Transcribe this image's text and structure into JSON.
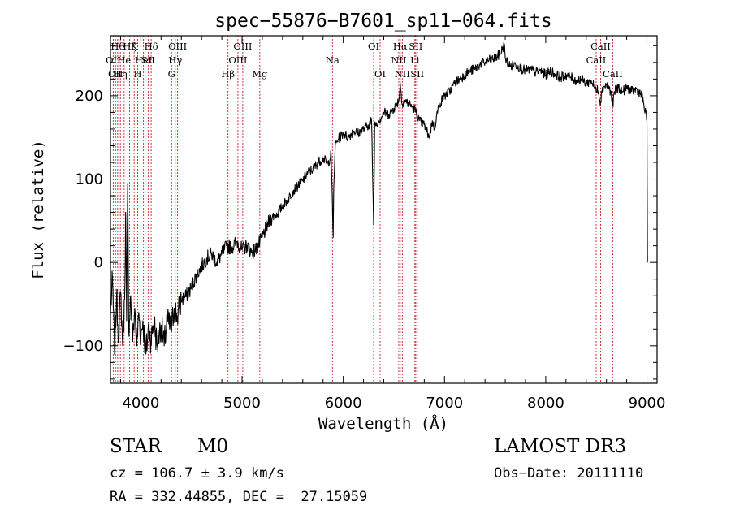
{
  "chart_data": {
    "type": "line",
    "title": "spec−55876−B7601_sp11−064.fits",
    "xlabel": "Wavelength (Å)",
    "ylabel": "Flux (relative)",
    "xlim": [
      3700,
      9100
    ],
    "ylim": [
      -145,
      272
    ],
    "x_ticks": [
      4000,
      5000,
      6000,
      7000,
      8000,
      9000
    ],
    "x_tick_labels": [
      "4000",
      "5000",
      "6000",
      "7000",
      "8000",
      "9000"
    ],
    "y_ticks": [
      -100,
      0,
      100,
      200
    ],
    "y_tick_labels": [
      "−100",
      "0",
      "100",
      "200"
    ],
    "grid": false,
    "series": [
      {
        "color": "#000000",
        "points": [
          [
            3700,
            -60
          ],
          [
            3720,
            -20
          ],
          [
            3740,
            -110
          ],
          [
            3760,
            -40
          ],
          [
            3780,
            -90
          ],
          [
            3800,
            -35
          ],
          [
            3820,
            -100
          ],
          [
            3840,
            -45
          ],
          [
            3850,
            60
          ],
          [
            3860,
            -70
          ],
          [
            3870,
            95
          ],
          [
            3880,
            -80
          ],
          [
            3900,
            -40
          ],
          [
            3920,
            -95
          ],
          [
            3940,
            -55
          ],
          [
            3960,
            -100
          ],
          [
            3980,
            -60
          ],
          [
            4000,
            -90
          ],
          [
            4020,
            -70
          ],
          [
            4050,
            -110
          ],
          [
            4080,
            -75
          ],
          [
            4100,
            -95
          ],
          [
            4130,
            -70
          ],
          [
            4160,
            -100
          ],
          [
            4200,
            -75
          ],
          [
            4230,
            -100
          ],
          [
            4260,
            -70
          ],
          [
            4300,
            -80
          ],
          [
            4330,
            -55
          ],
          [
            4360,
            -65
          ],
          [
            4400,
            -45
          ],
          [
            4450,
            -40
          ],
          [
            4500,
            -30
          ],
          [
            4550,
            -15
          ],
          [
            4600,
            -5
          ],
          [
            4650,
            5
          ],
          [
            4700,
            10
          ],
          [
            4750,
            0
          ],
          [
            4800,
            10
          ],
          [
            4850,
            20
          ],
          [
            4900,
            18
          ],
          [
            4950,
            25
          ],
          [
            5000,
            15
          ],
          [
            5050,
            20
          ],
          [
            5100,
            12
          ],
          [
            5150,
            18
          ],
          [
            5200,
            30
          ],
          [
            5250,
            45
          ],
          [
            5300,
            55
          ],
          [
            5350,
            58
          ],
          [
            5400,
            68
          ],
          [
            5450,
            75
          ],
          [
            5500,
            85
          ],
          [
            5550,
            92
          ],
          [
            5600,
            98
          ],
          [
            5650,
            108
          ],
          [
            5700,
            112
          ],
          [
            5750,
            120
          ],
          [
            5800,
            125
          ],
          [
            5850,
            118
          ],
          [
            5880,
            130
          ],
          [
            5900,
            30
          ],
          [
            5905,
            85
          ],
          [
            5920,
            140
          ],
          [
            5950,
            148
          ],
          [
            6000,
            155
          ],
          [
            6050,
            150
          ],
          [
            6100,
            158
          ],
          [
            6150,
            155
          ],
          [
            6200,
            160
          ],
          [
            6250,
            165
          ],
          [
            6280,
            170
          ],
          [
            6300,
            45
          ],
          [
            6310,
            165
          ],
          [
            6350,
            170
          ],
          [
            6380,
            175
          ],
          [
            6400,
            180
          ],
          [
            6450,
            178
          ],
          [
            6500,
            185
          ],
          [
            6550,
            195
          ],
          [
            6563,
            215
          ],
          [
            6580,
            190
          ],
          [
            6600,
            195
          ],
          [
            6650,
            190
          ],
          [
            6700,
            185
          ],
          [
            6750,
            170
          ],
          [
            6800,
            165
          ],
          [
            6850,
            150
          ],
          [
            6880,
            170
          ],
          [
            6900,
            160
          ],
          [
            6920,
            175
          ],
          [
            6950,
            190
          ],
          [
            7000,
            200
          ],
          [
            7050,
            205
          ],
          [
            7100,
            215
          ],
          [
            7150,
            220
          ],
          [
            7200,
            225
          ],
          [
            7250,
            230
          ],
          [
            7300,
            232
          ],
          [
            7350,
            238
          ],
          [
            7400,
            240
          ],
          [
            7450,
            243
          ],
          [
            7500,
            245
          ],
          [
            7550,
            250
          ],
          [
            7590,
            262
          ],
          [
            7600,
            245
          ],
          [
            7650,
            235
          ],
          [
            7700,
            238
          ],
          [
            7750,
            233
          ],
          [
            7800,
            230
          ],
          [
            7850,
            232
          ],
          [
            7900,
            228
          ],
          [
            7950,
            230
          ],
          [
            8000,
            225
          ],
          [
            8050,
            230
          ],
          [
            8100,
            225
          ],
          [
            8150,
            222
          ],
          [
            8200,
            225
          ],
          [
            8250,
            222
          ],
          [
            8300,
            218
          ],
          [
            8350,
            220
          ],
          [
            8400,
            215
          ],
          [
            8450,
            218
          ],
          [
            8498,
            205
          ],
          [
            8510,
            212
          ],
          [
            8542,
            192
          ],
          [
            8560,
            210
          ],
          [
            8600,
            213
          ],
          [
            8640,
            206
          ],
          [
            8662,
            188
          ],
          [
            8680,
            205
          ],
          [
            8720,
            210
          ],
          [
            8760,
            205
          ],
          [
            8800,
            210
          ],
          [
            8850,
            205
          ],
          [
            8900,
            208
          ],
          [
            8950,
            200
          ],
          [
            9000,
            170
          ],
          [
            9005,
            0
          ]
        ]
      }
    ],
    "line_markers": [
      {
        "wavelength": 3727,
        "label": "OII",
        "row": 2
      },
      {
        "wavelength": 3750,
        "label": "OII",
        "row": 3
      },
      {
        "wavelength": 3771,
        "label": "Hθ",
        "row": 1
      },
      {
        "wavelength": 3798,
        "label": "Hη",
        "row": 3
      },
      {
        "wavelength": 3835,
        "label": "He",
        "row": 2
      },
      {
        "wavelength": 3889,
        "label": "Hζ",
        "row": 1
      },
      {
        "wavelength": 3934,
        "label": "K",
        "row": 1
      },
      {
        "wavelength": 3969,
        "label": "H",
        "row": 3
      },
      {
        "wavelength": 4026,
        "label": "HeI",
        "row": 2
      },
      {
        "wavelength": 4072,
        "label": "SII",
        "row": 2
      },
      {
        "wavelength": 4102,
        "label": "Hδ",
        "row": 1
      },
      {
        "wavelength": 4304,
        "label": "G",
        "row": 3
      },
      {
        "wavelength": 4340,
        "label": "Hγ",
        "row": 2
      },
      {
        "wavelength": 4363,
        "label": "OIII",
        "row": 1
      },
      {
        "wavelength": 4861,
        "label": "Hβ",
        "row": 3
      },
      {
        "wavelength": 4959,
        "label": "OIII",
        "row": 2
      },
      {
        "wavelength": 5007,
        "label": "OIII",
        "row": 1
      },
      {
        "wavelength": 5175,
        "label": "Mg",
        "row": 3
      },
      {
        "wavelength": 5893,
        "label": "Na",
        "row": 2
      },
      {
        "wavelength": 6300,
        "label": "OI",
        "row": 1
      },
      {
        "wavelength": 6364,
        "label": "OI",
        "row": 3
      },
      {
        "wavelength": 6548,
        "label": "NII",
        "row": 2
      },
      {
        "wavelength": 6563,
        "label": "Hα",
        "row": 1
      },
      {
        "wavelength": 6583,
        "label": "NII",
        "row": 3
      },
      {
        "wavelength": 6707,
        "label": "Li",
        "row": 2
      },
      {
        "wavelength": 6716,
        "label": "SII",
        "row": 1
      },
      {
        "wavelength": 6731,
        "label": "SII",
        "row": 3
      },
      {
        "wavelength": 8498,
        "label": "CaII",
        "row": 2
      },
      {
        "wavelength": 8542,
        "label": "CaII",
        "row": 1
      },
      {
        "wavelength": 8662,
        "label": "CaII",
        "row": 3
      }
    ],
    "marker_color": "#cc2222"
  },
  "info": {
    "class_label": "STAR",
    "subclass_label": "M0",
    "survey_label": "LAMOST DR3",
    "cz_text": "cz = 106.7 ± 3.9 km/s",
    "obs_date_text": "Obs−Date: 20111110",
    "coords_text": "RA = 332.44855, DEC =  27.15059"
  }
}
